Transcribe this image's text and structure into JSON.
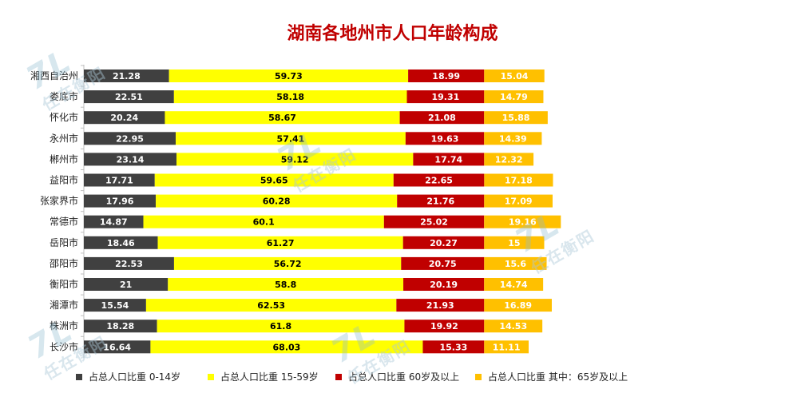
{
  "chart_data": {
    "type": "bar",
    "orientation": "horizontal",
    "stacked": true,
    "title": "湖南各地州市人口年龄构成",
    "categories": [
      "湘西自治州",
      "娄底市",
      "怀化市",
      "永州市",
      "郴州市",
      "益阳市",
      "张家界市",
      "常德市",
      "岳阳市",
      "邵阳市",
      "衡阳市",
      "湘潭市",
      "株洲市",
      "长沙市"
    ],
    "series": [
      {
        "name": "占总人口比重 0-14岁",
        "color": "#404040",
        "values": [
          21.28,
          22.51,
          20.24,
          22.95,
          23.14,
          17.71,
          17.96,
          14.87,
          18.46,
          22.53,
          21,
          15.54,
          18.28,
          16.64
        ],
        "labels": [
          "21.28",
          "22.51",
          "20.24",
          "22.95",
          "23.14",
          "17.71",
          "17.96",
          "14.87",
          "18.46",
          "22.53",
          "21",
          "15.54",
          "18.28",
          "16.64"
        ]
      },
      {
        "name": "占总人口比重 15-59岁",
        "color": "#ffff00",
        "values": [
          59.73,
          58.18,
          58.67,
          57.41,
          59.12,
          59.65,
          60.28,
          60.1,
          61.27,
          56.72,
          58.8,
          62.53,
          61.8,
          68.03
        ],
        "labels": [
          "59.73",
          "58.18",
          "58.67",
          "57.41",
          "59.12",
          "59.65",
          "60.28",
          "60.1",
          "61.27",
          "56.72",
          "58.8",
          "62.53",
          "61.8",
          "68.03"
        ]
      },
      {
        "name": "占总人口比重 60岁及以上",
        "color": "#c00000",
        "values": [
          18.99,
          19.31,
          21.08,
          19.63,
          17.74,
          22.65,
          21.76,
          25.02,
          20.27,
          20.75,
          20.19,
          21.93,
          19.92,
          15.33
        ],
        "labels": [
          "18.99",
          "19.31",
          "21.08",
          "19.63",
          "17.74",
          "22.65",
          "21.76",
          "25.02",
          "20.27",
          "20.75",
          "20.19",
          "21.93",
          "19.92",
          "15.33"
        ]
      },
      {
        "name": "占总人口比重 其中：65岁及以上",
        "color": "#ffc000",
        "values": [
          15.04,
          14.79,
          15.88,
          14.39,
          12.32,
          17.18,
          17.09,
          19.16,
          15,
          15.6,
          14.74,
          16.89,
          14.53,
          11.11
        ],
        "labels": [
          "15.04",
          "14.79",
          "15.88",
          "14.39",
          "12.32",
          "17.18",
          "17.09",
          "19.16",
          "15",
          "15.6",
          "14.74",
          "16.89",
          "14.53",
          "11.11"
        ]
      }
    ],
    "legend_position": "bottom",
    "grid": false
  },
  "watermark": {
    "text": "任在衡阳",
    "mark": "7L"
  }
}
